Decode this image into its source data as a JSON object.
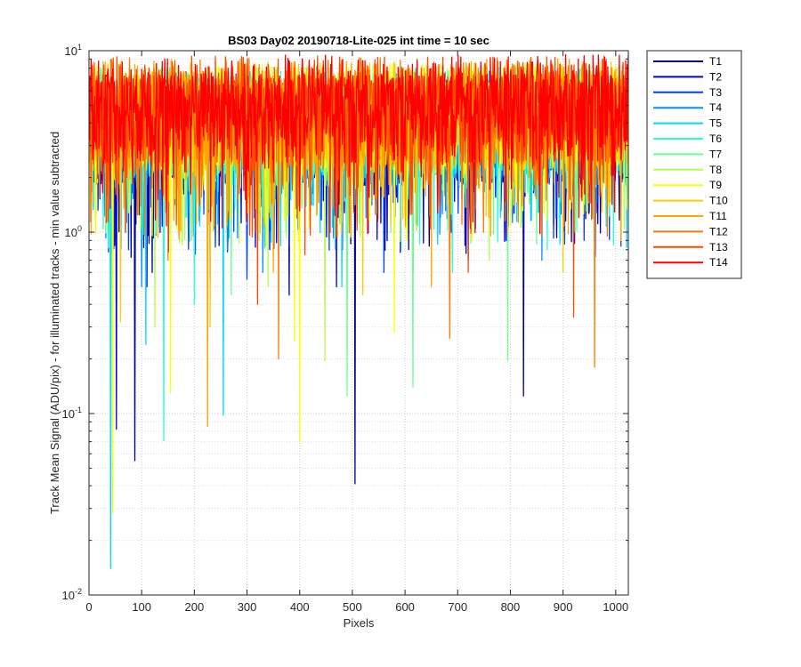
{
  "chart_data": {
    "type": "line",
    "title": "BS03 Day02 20190718-Lite-025 int time = 10 sec",
    "xlabel": "Pixels",
    "ylabel": "Track Mean Signal (ADU/pix) - for illuminated tracks - min value subtracted",
    "xlim": [
      0,
      1024
    ],
    "ylim": [
      0.01,
      10
    ],
    "yscale": "log",
    "grid": true,
    "x_ticks": [
      0,
      100,
      200,
      300,
      400,
      500,
      600,
      700,
      800,
      900,
      1000
    ],
    "x_tick_labels": [
      "0",
      "100",
      "200",
      "300",
      "400",
      "500",
      "600",
      "700",
      "800",
      "900",
      "1000"
    ],
    "y_ticks": [
      0.01,
      0.1,
      1,
      10
    ],
    "y_tick_labels": [
      {
        "base": "10",
        "exp": "-2"
      },
      {
        "base": "10",
        "exp": "-1"
      },
      {
        "base": "10",
        "exp": "0"
      },
      {
        "base": "10",
        "exp": "1"
      }
    ],
    "legend_position": "outside-right",
    "series": [
      {
        "name": "T1",
        "color": "#00008f",
        "level": 4.0,
        "spikes": [
          [
            87,
            0.055
          ],
          [
            505,
            0.041
          ],
          [
            825,
            0.125
          ],
          [
            120,
            0.6
          ],
          [
            380,
            0.45
          ]
        ]
      },
      {
        "name": "T2",
        "color": "#0000e6",
        "level": 4.1,
        "spikes": [
          [
            52,
            0.082
          ],
          [
            110,
            0.5
          ],
          [
            230,
            0.55
          ],
          [
            470,
            0.5
          ],
          [
            615,
            0.6
          ]
        ]
      },
      {
        "name": "T3",
        "color": "#0040ff",
        "level": 4.2,
        "spikes": [
          [
            75,
            0.8
          ],
          [
            300,
            0.55
          ],
          [
            560,
            0.6
          ],
          [
            720,
            0.7
          ],
          [
            940,
            0.9
          ]
        ]
      },
      {
        "name": "T4",
        "color": "#0090ff",
        "level": 4.3,
        "spikes": [
          [
            100,
            0.5
          ],
          [
            330,
            0.6
          ],
          [
            580,
            0.55
          ],
          [
            860,
            0.7
          ]
        ]
      },
      {
        "name": "T5",
        "color": "#00d9ff",
        "level": 4.4,
        "spikes": [
          [
            41,
            0.014
          ],
          [
            255,
            0.098
          ],
          [
            108,
            0.24
          ],
          [
            480,
            0.5
          ]
        ]
      },
      {
        "name": "T6",
        "color": "#26ffd9",
        "level": 4.5,
        "spikes": [
          [
            142,
            0.071
          ],
          [
            200,
            0.4
          ],
          [
            690,
            0.6
          ],
          [
            870,
            0.8
          ]
        ]
      },
      {
        "name": "T7",
        "color": "#6dff92",
        "level": 4.6,
        "spikes": [
          [
            490,
            0.125
          ],
          [
            615,
            0.14
          ],
          [
            795,
            0.195
          ],
          [
            270,
            0.45
          ]
        ]
      },
      {
        "name": "T8",
        "color": "#b3ff4c",
        "level": 4.7,
        "spikes": [
          [
            125,
            0.3
          ],
          [
            340,
            0.5
          ],
          [
            448,
            0.195
          ],
          [
            760,
            0.7
          ]
        ]
      },
      {
        "name": "T9",
        "color": "#ffff00",
        "level": 4.8,
        "spikes": [
          [
            45,
            0.028
          ],
          [
            155,
            0.13
          ],
          [
            400,
            0.07
          ],
          [
            390,
            0.25
          ],
          [
            580,
            0.28
          ]
        ]
      },
      {
        "name": "T10",
        "color": "#ffcc00",
        "level": 4.9,
        "spikes": [
          [
            60,
            0.32
          ],
          [
            230,
            0.3
          ],
          [
            520,
            0.45
          ],
          [
            900,
            0.6
          ]
        ]
      },
      {
        "name": "T11",
        "color": "#ffa600",
        "level": 5.0,
        "spikes": [
          [
            225,
            0.085
          ],
          [
            350,
            0.6
          ],
          [
            650,
            0.5
          ],
          [
            1010,
            0.9
          ]
        ]
      },
      {
        "name": "T12",
        "color": "#ff7a00",
        "level": 5.1,
        "spikes": [
          [
            360,
            0.2
          ],
          [
            685,
            0.26
          ],
          [
            960,
            0.18
          ],
          [
            150,
            0.7
          ]
        ]
      },
      {
        "name": "T13",
        "color": "#ff4a00",
        "level": 5.2,
        "spikes": [
          [
            920,
            0.34
          ],
          [
            320,
            0.4
          ],
          [
            720,
            0.6
          ],
          [
            410,
            0.75
          ]
        ]
      },
      {
        "name": "T14",
        "color": "#ff0000",
        "level": 5.3,
        "spikes": []
      }
    ]
  }
}
